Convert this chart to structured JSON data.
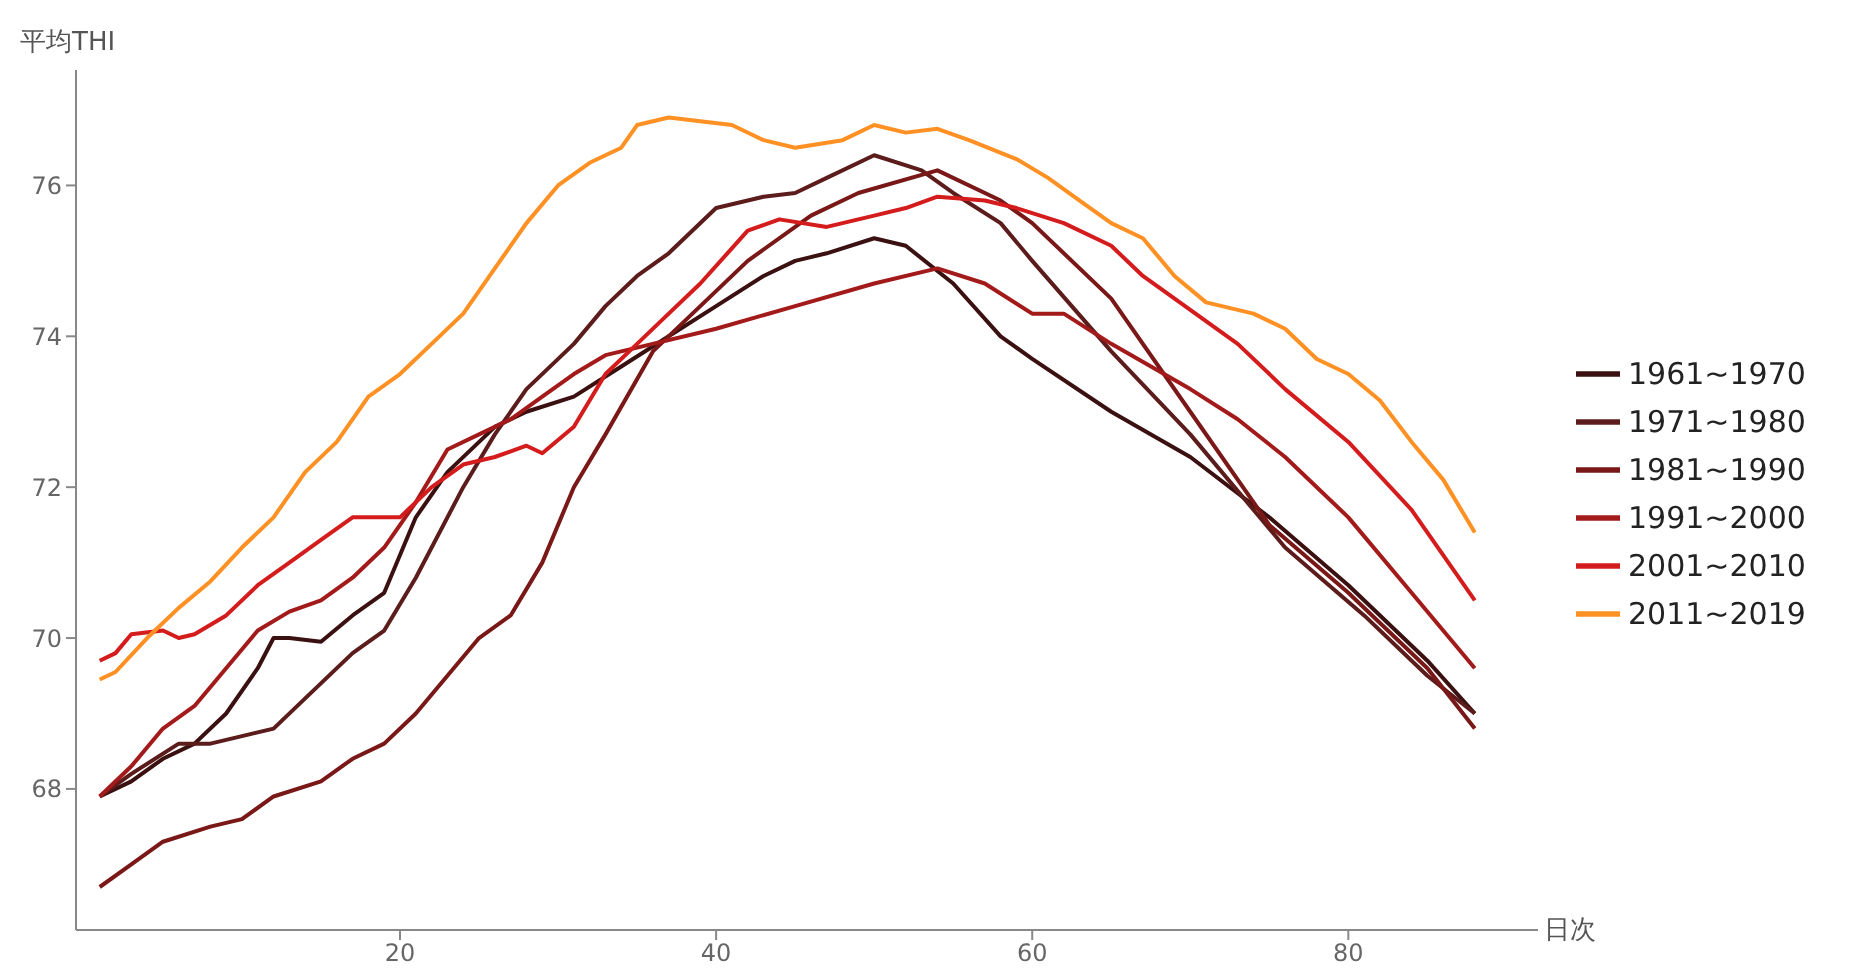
{
  "chart_data": {
    "type": "line",
    "xlabel": "日次",
    "ylabel": "平均THI",
    "xlim": [
      -0.5,
      92
    ],
    "ylim": [
      66.13,
      77.53
    ],
    "xticks": [
      20,
      40,
      60,
      80
    ],
    "yticks": [
      68,
      70,
      72,
      74,
      76
    ],
    "grid": false,
    "legend": "right",
    "marker": "none",
    "line_style": "solid",
    "series": [
      {
        "name": "1961~1970",
        "color": "#3b1010",
        "x": [
          1,
          3,
          5,
          7,
          9,
          11,
          12,
          13,
          15,
          17,
          19,
          21,
          23,
          26,
          28,
          31,
          34,
          37,
          40,
          43,
          45,
          47,
          50,
          52,
          55,
          58,
          60,
          65,
          70,
          75,
          80,
          85,
          88
        ],
        "values": [
          67.9,
          68.1,
          68.4,
          68.6,
          69.0,
          69.6,
          70.0,
          70.0,
          69.95,
          70.3,
          70.6,
          71.6,
          72.2,
          72.8,
          73.0,
          73.2,
          73.6,
          74.0,
          74.4,
          74.8,
          75.0,
          75.1,
          75.3,
          75.2,
          74.7,
          74.0,
          73.7,
          73.0,
          72.4,
          71.6,
          70.7,
          69.7,
          69.0
        ]
      },
      {
        "name": "1971~1980",
        "color": "#5c1c1c",
        "x": [
          1,
          3,
          6,
          8,
          10,
          12,
          14,
          17,
          19,
          21,
          24,
          26,
          28,
          31,
          33,
          35,
          37,
          40,
          43,
          45,
          47,
          50,
          53,
          55,
          58,
          60,
          65,
          70,
          76,
          81,
          85,
          88
        ],
        "values": [
          67.9,
          68.2,
          68.6,
          68.6,
          68.7,
          68.8,
          69.2,
          69.8,
          70.1,
          70.8,
          72.0,
          72.7,
          73.3,
          73.9,
          74.4,
          74.8,
          75.1,
          75.7,
          75.85,
          75.9,
          76.1,
          76.4,
          76.2,
          75.9,
          75.5,
          75.0,
          73.8,
          72.7,
          71.2,
          70.3,
          69.5,
          69.0
        ]
      },
      {
        "name": "1981~1990",
        "color": "#7a1717",
        "x": [
          1,
          3,
          5,
          8,
          10,
          12,
          15,
          17,
          19,
          21,
          23,
          25,
          27,
          29,
          31,
          33,
          36,
          39,
          42,
          46,
          49,
          54,
          58,
          60,
          65,
          70,
          75,
          80,
          85,
          88
        ],
        "values": [
          66.7,
          67.0,
          67.3,
          67.5,
          67.6,
          67.9,
          68.1,
          68.4,
          68.6,
          69.0,
          69.5,
          70.0,
          70.3,
          71.0,
          72.0,
          72.7,
          73.8,
          74.4,
          75.0,
          75.6,
          75.9,
          76.2,
          75.8,
          75.5,
          74.5,
          73.0,
          71.5,
          70.6,
          69.6,
          68.8
        ]
      },
      {
        "name": "1991~2000",
        "color": "#a31a1a",
        "x": [
          1,
          3,
          5,
          7,
          9,
          11,
          13,
          15,
          17,
          19,
          21,
          23,
          25,
          27,
          29,
          31,
          33,
          35,
          40,
          45,
          50,
          54,
          57,
          60,
          62,
          65,
          70,
          73,
          76,
          80,
          84,
          88
        ],
        "values": [
          67.9,
          68.3,
          68.8,
          69.1,
          69.6,
          70.1,
          70.35,
          70.5,
          70.8,
          71.2,
          71.8,
          72.5,
          72.7,
          72.9,
          73.2,
          73.5,
          73.75,
          73.85,
          74.1,
          74.4,
          74.7,
          74.9,
          74.7,
          74.3,
          74.3,
          73.9,
          73.3,
          72.9,
          72.4,
          71.6,
          70.6,
          69.6
        ]
      },
      {
        "name": "2001~2010",
        "color": "#d41c1c",
        "x": [
          1,
          2,
          3,
          5,
          6,
          7,
          9,
          11,
          13,
          15,
          17,
          20,
          22,
          24,
          26,
          28,
          29,
          31,
          33,
          35,
          37,
          39,
          42,
          44,
          47,
          50,
          52,
          54,
          57,
          59,
          62,
          65,
          67,
          70,
          73,
          76,
          80,
          84,
          88
        ],
        "values": [
          69.7,
          69.8,
          70.05,
          70.1,
          70.0,
          70.05,
          70.3,
          70.7,
          71.0,
          71.3,
          71.6,
          71.6,
          72.0,
          72.3,
          72.4,
          72.55,
          72.45,
          72.8,
          73.5,
          73.9,
          74.3,
          74.7,
          75.4,
          75.55,
          75.45,
          75.6,
          75.7,
          75.85,
          75.8,
          75.7,
          75.5,
          75.2,
          74.8,
          74.35,
          73.9,
          73.3,
          72.6,
          71.7,
          70.5
        ]
      },
      {
        "name": "2011~2019",
        "color": "#ff9124",
        "x": [
          1,
          2,
          4,
          6,
          8,
          10,
          12,
          14,
          16,
          18,
          20,
          22,
          24,
          26,
          28,
          30,
          32,
          34,
          35,
          37,
          39,
          41,
          43,
          45,
          48,
          50,
          52,
          54,
          56,
          59,
          61,
          63,
          65,
          67,
          69,
          71,
          74,
          76,
          78,
          80,
          82,
          84,
          86,
          88
        ],
        "values": [
          69.45,
          69.55,
          70.0,
          70.4,
          70.75,
          71.2,
          71.6,
          72.2,
          72.6,
          73.2,
          73.5,
          73.9,
          74.3,
          74.9,
          75.5,
          76.0,
          76.3,
          76.5,
          76.8,
          76.9,
          76.85,
          76.8,
          76.6,
          76.5,
          76.6,
          76.8,
          76.7,
          76.75,
          76.6,
          76.35,
          76.1,
          75.8,
          75.5,
          75.3,
          74.8,
          74.45,
          74.3,
          74.1,
          73.7,
          73.5,
          73.15,
          72.6,
          72.1,
          71.4
        ]
      }
    ]
  }
}
